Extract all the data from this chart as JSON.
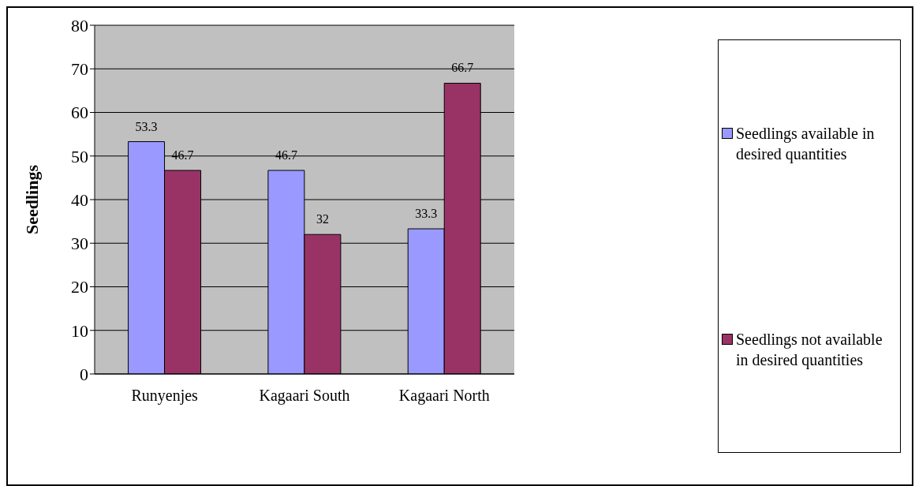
{
  "chart_data": {
    "type": "bar",
    "ylabel": "Seedlings",
    "categories": [
      "Runyenjes",
      "Kagaari South",
      "Kagaari North"
    ],
    "series": [
      {
        "name": "Seedlings available in desired quantities",
        "color": "#9999ff",
        "values": [
          53.3,
          46.7,
          33.3
        ]
      },
      {
        "name": "Seedlings not available in desired quantities",
        "color": "#993366",
        "values": [
          46.7,
          32,
          66.7
        ]
      }
    ],
    "ylim": [
      0,
      80
    ],
    "yticks": [
      0,
      10,
      20,
      30,
      40,
      50,
      60,
      70,
      80
    ],
    "grid": "y",
    "legend": "right",
    "data_labels": true
  }
}
